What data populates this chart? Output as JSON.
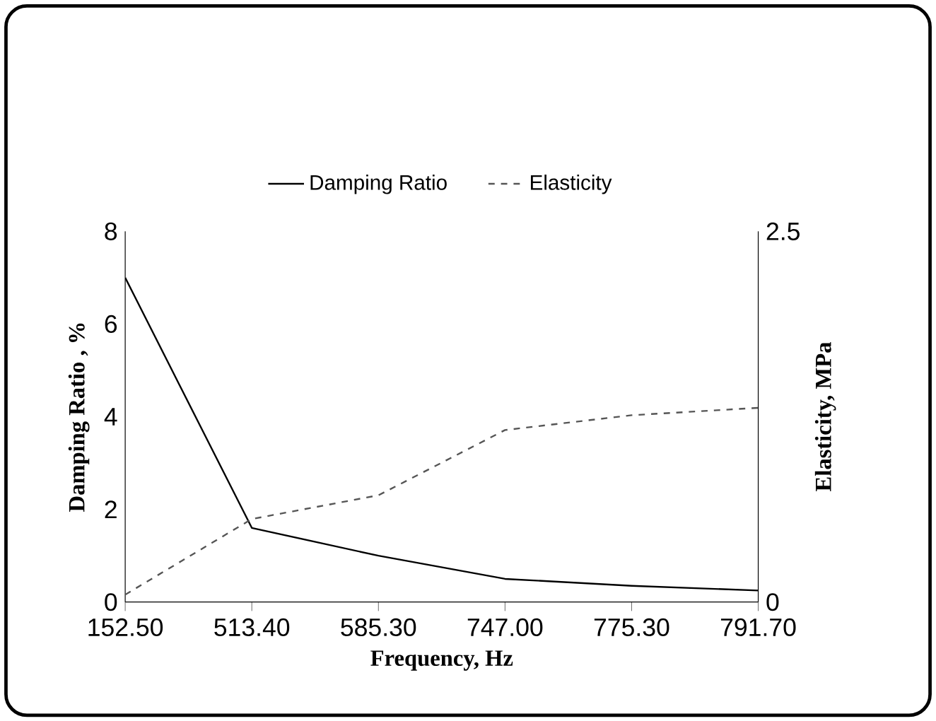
{
  "chart_data": {
    "type": "line",
    "xlabel": "Frequency, Hz",
    "ylabel": "Damping Ratio , %",
    "y2label": "Elasticity, MPa",
    "categories": [
      "152.50",
      "513.40",
      "585.30",
      "747.00",
      "775.30",
      "791.70"
    ],
    "series": [
      {
        "name": "Damping Ratio",
        "color": "#000000",
        "line_style": "solid",
        "values": [
          7.0,
          1.6,
          1.0,
          0.5,
          0.35,
          0.25
        ]
      },
      {
        "name": "Elasticity",
        "color": "#555555",
        "line_style": "dashed",
        "axis": "y2",
        "values": [
          0.05,
          0.56,
          0.72,
          1.16,
          1.26,
          1.31
        ]
      }
    ],
    "ylim": [
      0,
      8
    ],
    "yticks": [
      0,
      2,
      4,
      6,
      8
    ],
    "y2lim": [
      0,
      2.5
    ],
    "y2ticks": [
      0,
      2.5
    ],
    "legend": "top",
    "grid": false,
    "marker": "none"
  }
}
